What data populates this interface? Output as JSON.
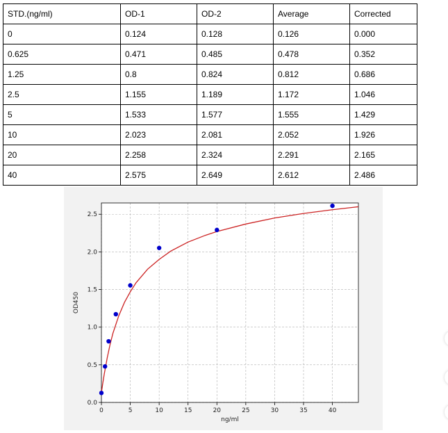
{
  "table": {
    "headers": [
      "STD.(ng/ml)",
      "OD-1",
      "OD-2",
      "Average",
      "Corrected"
    ],
    "rows": [
      [
        "0",
        "0.124",
        "0.128",
        "0.126",
        "0.000"
      ],
      [
        "0.625",
        "0.471",
        "0.485",
        "0.478",
        "0.352"
      ],
      [
        "1.25",
        "0.8",
        "0.824",
        "0.812",
        "0.686"
      ],
      [
        "2.5",
        "1.155",
        "1.189",
        "1.172",
        "1.046"
      ],
      [
        "5",
        "1.533",
        "1.577",
        "1.555",
        "1.429"
      ],
      [
        "10",
        "2.023",
        "2.081",
        "2.052",
        "1.926"
      ],
      [
        "20",
        "2.258",
        "2.324",
        "2.291",
        "2.165"
      ],
      [
        "40",
        "2.575",
        "2.649",
        "2.612",
        "2.486"
      ]
    ]
  },
  "chart_data": {
    "type": "scatter",
    "xlabel": "ng/ml",
    "ylabel": "OD450",
    "xlim": [
      0,
      44.5
    ],
    "ylim": [
      0,
      2.65
    ],
    "xticks": [
      0,
      5,
      10,
      15,
      20,
      25,
      30,
      35,
      40
    ],
    "yticks": [
      0.0,
      0.5,
      1.0,
      1.5,
      2.0,
      2.5
    ],
    "grid": true,
    "series": [
      {
        "type": "scatter",
        "color": "#0000cc",
        "x": [
          0,
          0.625,
          1.25,
          2.5,
          5,
          10,
          20,
          40
        ],
        "y": [
          0.126,
          0.478,
          0.812,
          1.172,
          1.555,
          2.052,
          2.291,
          2.612
        ]
      },
      {
        "type": "line",
        "color": "#cc2222",
        "x": [
          0,
          0.25,
          0.5,
          1,
          1.5,
          2,
          3,
          4,
          5,
          6,
          8,
          10,
          12,
          15,
          18,
          20,
          25,
          30,
          35,
          40,
          44.5
        ],
        "y": [
          0.13,
          0.26,
          0.38,
          0.59,
          0.77,
          0.92,
          1.15,
          1.33,
          1.47,
          1.59,
          1.77,
          1.9,
          2.01,
          2.13,
          2.22,
          2.27,
          2.37,
          2.45,
          2.51,
          2.56,
          2.6
        ]
      }
    ]
  }
}
